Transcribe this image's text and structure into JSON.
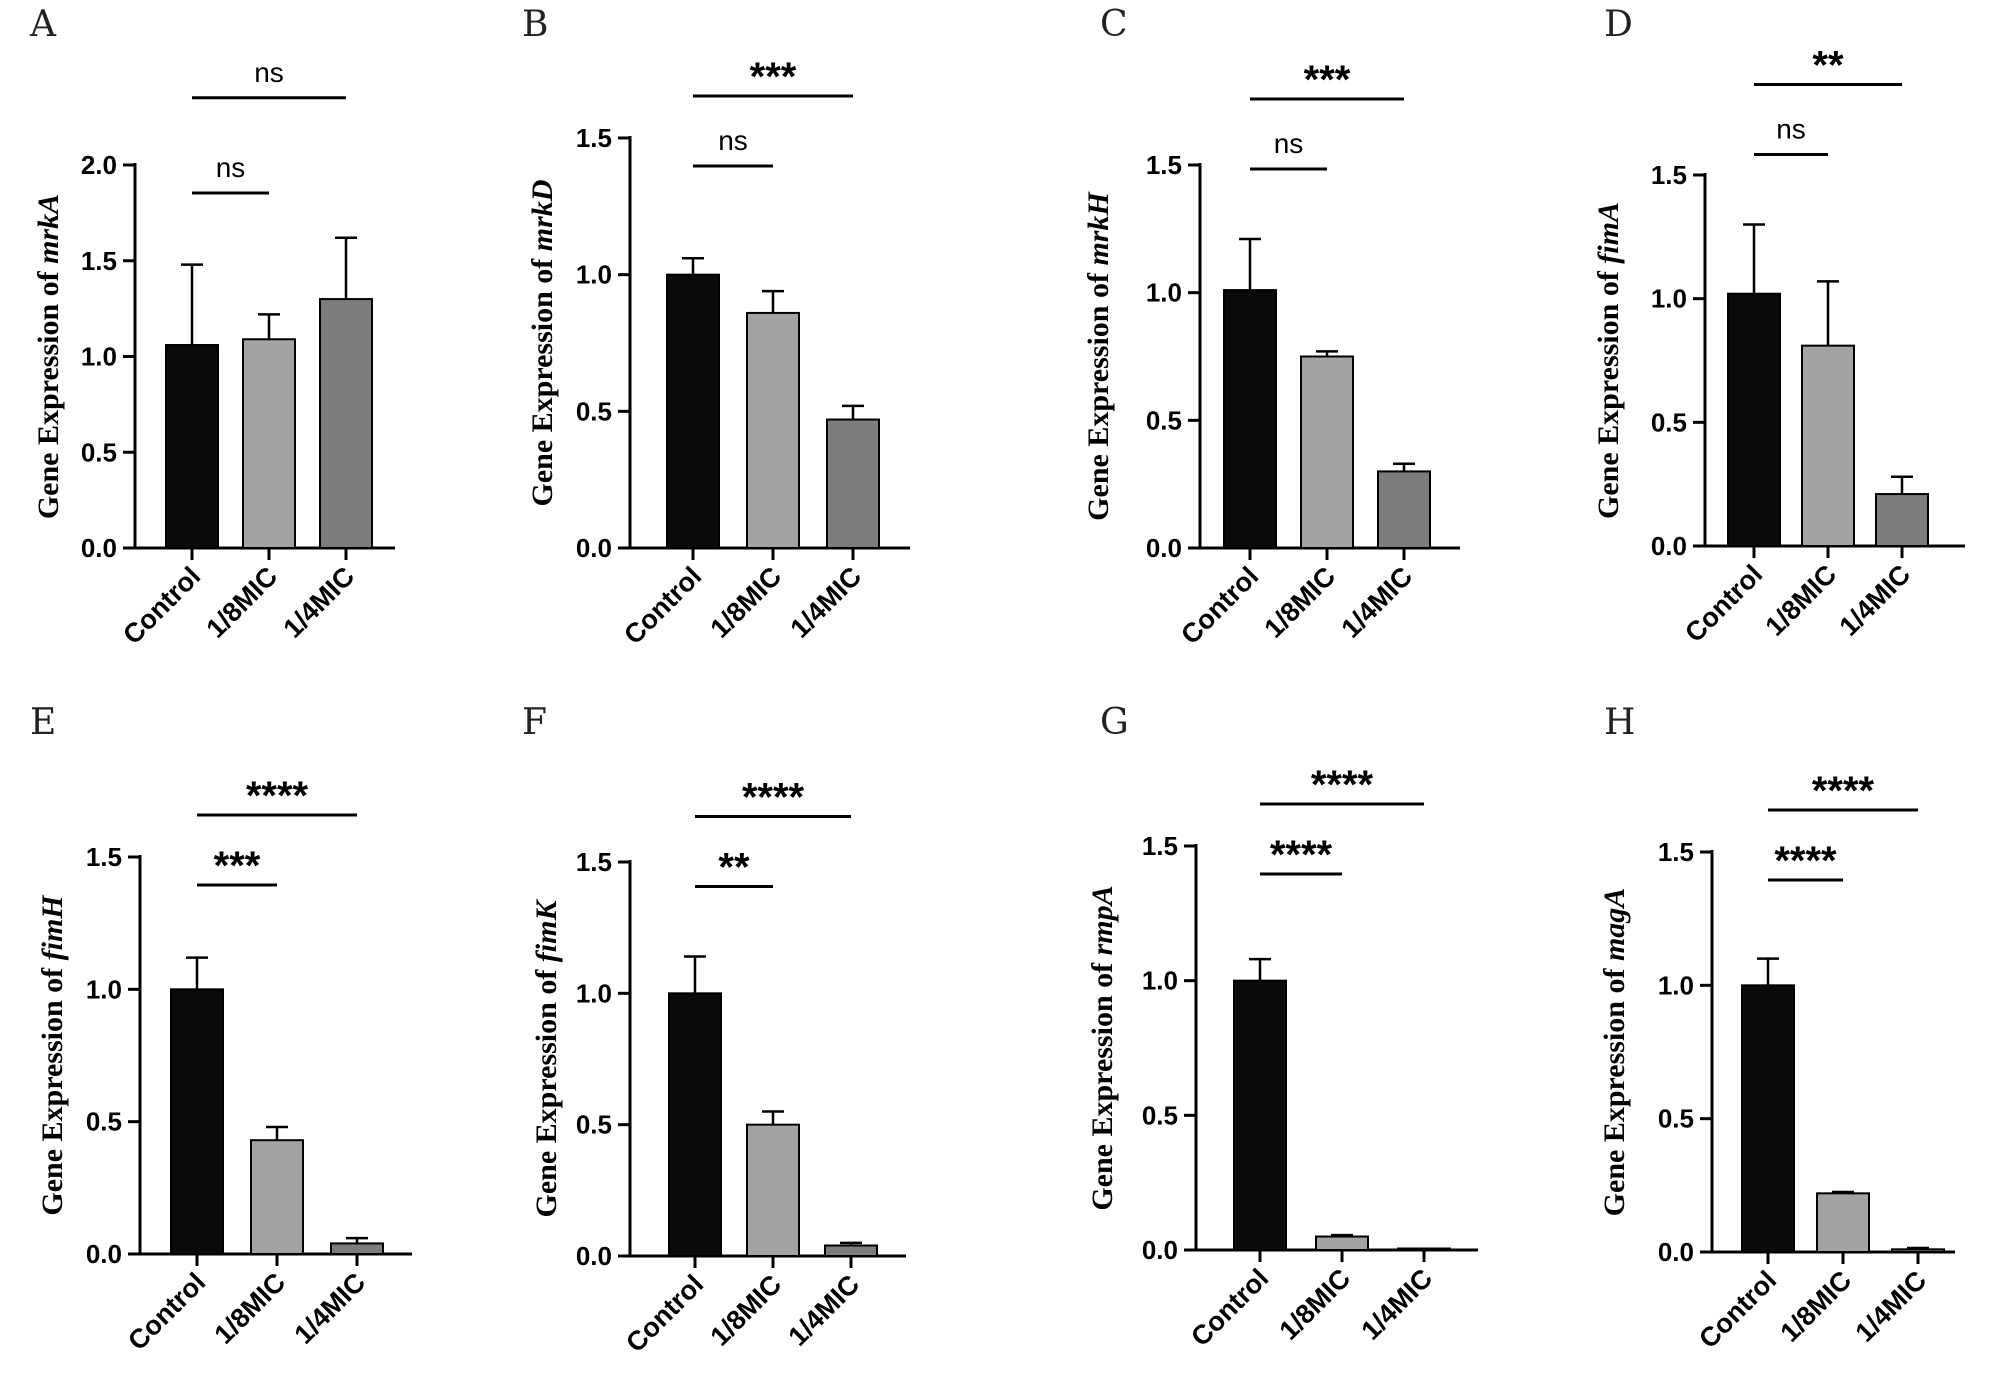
{
  "chart_data": [
    {
      "panel": "A",
      "type": "bar",
      "gene": "mrkA",
      "ylabel_prefix": "Gene Expression of ",
      "categories": [
        "Control",
        "1/8MIC",
        "1/4MIC"
      ],
      "values": [
        1.06,
        1.09,
        1.3
      ],
      "errors": [
        0.42,
        0.13,
        0.32
      ],
      "ylim": [
        0,
        2.0
      ],
      "yticks": [
        0.0,
        0.5,
        1.0,
        1.5,
        2.0
      ],
      "ytick_labels": [
        "0.0",
        "0.5",
        "1.0",
        "1.5",
        "2.0"
      ],
      "significance": [
        {
          "from": 0,
          "to": 1,
          "label": "ns",
          "level": 1
        },
        {
          "from": 0,
          "to": 2,
          "label": "ns",
          "level": 2
        }
      ]
    },
    {
      "panel": "B",
      "type": "bar",
      "gene": "mrkD",
      "ylabel_prefix": "Gene Expression of ",
      "categories": [
        "Control",
        "1/8MIC",
        "1/4MIC"
      ],
      "values": [
        1.0,
        0.86,
        0.47
      ],
      "errors": [
        0.06,
        0.08,
        0.05
      ],
      "ylim": [
        0,
        1.5
      ],
      "yticks": [
        0.0,
        0.5,
        1.0,
        1.5
      ],
      "ytick_labels": [
        "0.0",
        "0.5",
        "1.0",
        "1.5"
      ],
      "significance": [
        {
          "from": 0,
          "to": 1,
          "label": "ns",
          "level": 1
        },
        {
          "from": 0,
          "to": 2,
          "label": "***",
          "level": 2
        }
      ]
    },
    {
      "panel": "C",
      "type": "bar",
      "gene": "mrkH",
      "ylabel_prefix": "Gene Expression of ",
      "categories": [
        "Control",
        "1/8MIC",
        "1/4MIC"
      ],
      "values": [
        1.01,
        0.75,
        0.3
      ],
      "errors": [
        0.2,
        0.02,
        0.03
      ],
      "ylim": [
        0,
        1.5
      ],
      "yticks": [
        0.0,
        0.5,
        1.0,
        1.5
      ],
      "ytick_labels": [
        "0.0",
        "0.5",
        "1.0",
        "1.5"
      ],
      "significance": [
        {
          "from": 0,
          "to": 1,
          "label": "ns",
          "level": 1
        },
        {
          "from": 0,
          "to": 2,
          "label": "***",
          "level": 2
        }
      ]
    },
    {
      "panel": "D",
      "type": "bar",
      "gene": "fimA",
      "ylabel_prefix": "Gene Expression of ",
      "categories": [
        "Control",
        "1/8MIC",
        "1/4MIC"
      ],
      "values": [
        1.02,
        0.81,
        0.21
      ],
      "errors": [
        0.28,
        0.26,
        0.07
      ],
      "ylim": [
        0,
        1.5
      ],
      "yticks": [
        0.0,
        0.5,
        1.0,
        1.5
      ],
      "ytick_labels": [
        "0.0",
        "0.5",
        "1.0",
        "1.5"
      ],
      "significance": [
        {
          "from": 0,
          "to": 1,
          "label": "ns",
          "level": 1
        },
        {
          "from": 0,
          "to": 2,
          "label": "**",
          "level": 2
        }
      ]
    },
    {
      "panel": "E",
      "type": "bar",
      "gene": "fimH",
      "ylabel_prefix": "Gene Expression of ",
      "categories": [
        "Control",
        "1/8MIC",
        "1/4MIC"
      ],
      "values": [
        1.0,
        0.43,
        0.04
      ],
      "errors": [
        0.12,
        0.05,
        0.02
      ],
      "ylim": [
        0,
        1.5
      ],
      "yticks": [
        0.0,
        0.5,
        1.0,
        1.5
      ],
      "ytick_labels": [
        "0.0",
        "0.5",
        "1.0",
        "1.5"
      ],
      "significance": [
        {
          "from": 0,
          "to": 1,
          "label": "***",
          "level": 1
        },
        {
          "from": 0,
          "to": 2,
          "label": "****",
          "level": 2
        }
      ]
    },
    {
      "panel": "F",
      "type": "bar",
      "gene": "fimK",
      "ylabel_prefix": "Gene Expression of ",
      "categories": [
        "Control",
        "1/8MIC",
        "1/4MIC"
      ],
      "values": [
        1.0,
        0.5,
        0.04
      ],
      "errors": [
        0.14,
        0.05,
        0.01
      ],
      "ylim": [
        0,
        1.5
      ],
      "yticks": [
        0.0,
        0.5,
        1.0,
        1.5
      ],
      "ytick_labels": [
        "0.0",
        "0.5",
        "1.0",
        "1.5"
      ],
      "significance": [
        {
          "from": 0,
          "to": 1,
          "label": "**",
          "level": 1
        },
        {
          "from": 0,
          "to": 2,
          "label": "****",
          "level": 2
        }
      ]
    },
    {
      "panel": "G",
      "type": "bar",
      "gene": "rmpA",
      "ylabel_prefix": "Gene Expression of ",
      "categories": [
        "Control",
        "1/8MIC",
        "1/4MIC"
      ],
      "values": [
        1.0,
        0.05,
        0.002
      ],
      "errors": [
        0.08,
        0.005,
        0.001
      ],
      "ylim": [
        0,
        1.5
      ],
      "yticks": [
        0.0,
        0.5,
        1.0,
        1.5
      ],
      "ytick_labels": [
        "0.0",
        "0.5",
        "1.0",
        "1.5"
      ],
      "significance": [
        {
          "from": 0,
          "to": 1,
          "label": "****",
          "level": 1
        },
        {
          "from": 0,
          "to": 2,
          "label": "****",
          "level": 2
        }
      ]
    },
    {
      "panel": "H",
      "type": "bar",
      "gene": "magA",
      "ylabel_prefix": "Gene Expression of ",
      "categories": [
        "Control",
        "1/8MIC",
        "1/4MIC"
      ],
      "values": [
        1.0,
        0.22,
        0.01
      ],
      "errors": [
        0.1,
        0.005,
        0.005
      ],
      "ylim": [
        0,
        1.5
      ],
      "yticks": [
        0.0,
        0.5,
        1.0,
        1.5
      ],
      "ytick_labels": [
        "0.0",
        "0.5",
        "1.0",
        "1.5"
      ],
      "significance": [
        {
          "from": 0,
          "to": 1,
          "label": "****",
          "level": 1
        },
        {
          "from": 0,
          "to": 2,
          "label": "****",
          "level": 2
        }
      ]
    }
  ],
  "colors": {
    "axis": "#000000",
    "bar_fills": [
      "#0a0a0a",
      "#a3a3a6",
      "#7c7c7f"
    ],
    "bar_stroke": "#000000"
  }
}
